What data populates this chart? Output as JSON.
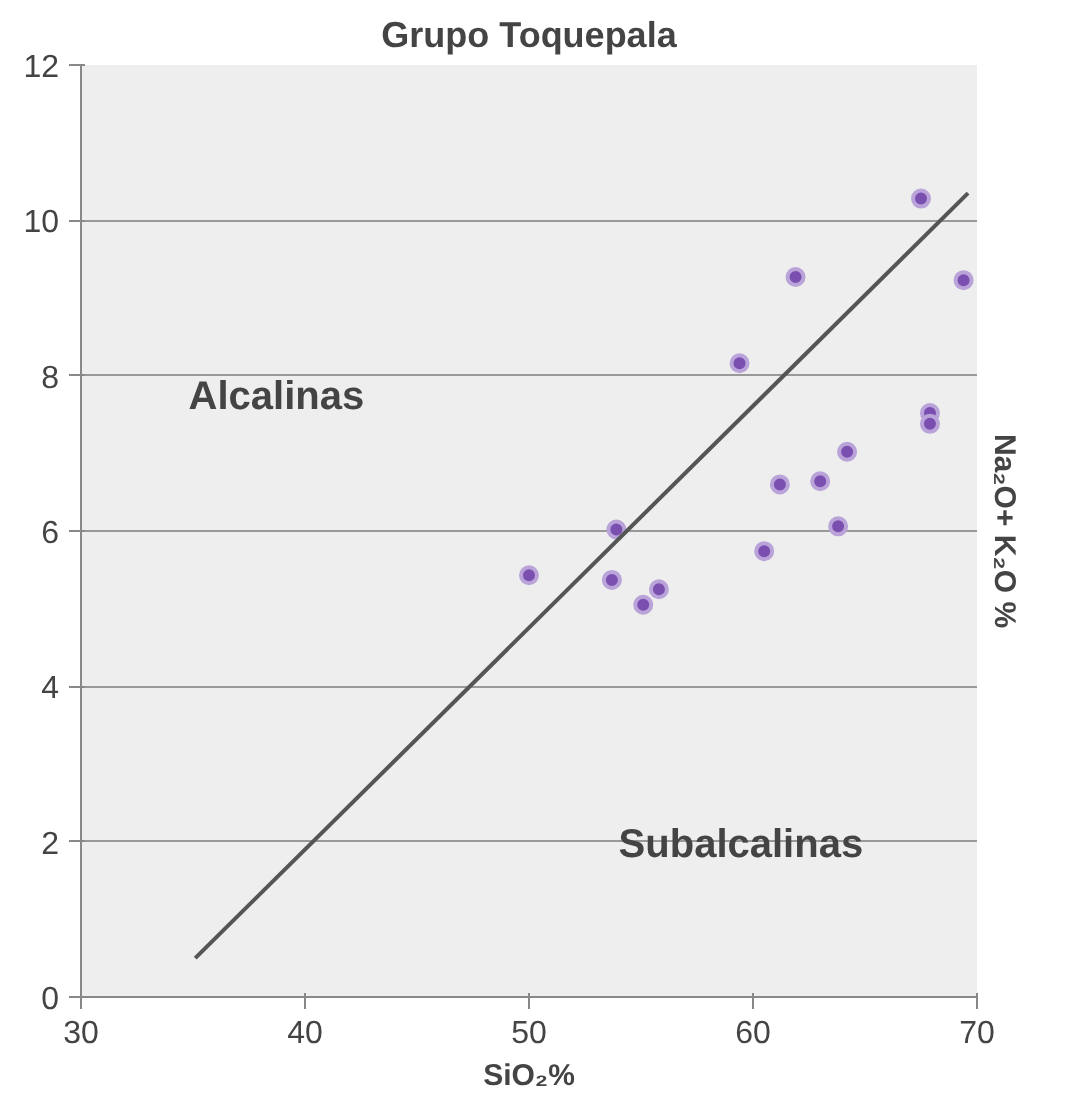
{
  "chart_data": {
    "type": "scatter",
    "title": "Grupo Toquepala",
    "xlabel": "SiO₂%",
    "ylabel": "Na₂O+ K₂O %",
    "xlim": [
      30,
      70
    ],
    "ylim": [
      0,
      12
    ],
    "xticks": [
      30,
      40,
      50,
      60,
      70
    ],
    "yticks": [
      0,
      2,
      4,
      6,
      8,
      10,
      12
    ],
    "grid": "y",
    "marker": "circle",
    "series": [
      {
        "color": "#7b4fb0",
        "x": [
          67.5,
          61.9,
          69.4,
          59.4,
          67.9,
          67.9,
          64.2,
          61.2,
          63.0,
          63.8,
          53.9,
          60.5,
          50.0,
          53.7,
          55.8,
          55.1
        ],
        "values": [
          10.28,
          9.27,
          9.23,
          8.16,
          7.52,
          7.38,
          7.02,
          6.6,
          6.64,
          6.06,
          6.02,
          5.74,
          5.43,
          5.37,
          5.25,
          5.05
        ]
      },
      {
        "type": "line",
        "color": "#555555",
        "x": [
          35.1,
          69.6
        ],
        "values": [
          0.5,
          10.35
        ],
        "marker": "none"
      }
    ],
    "annotations": [
      "Alcalinas",
      "Subalcalinas"
    ]
  }
}
